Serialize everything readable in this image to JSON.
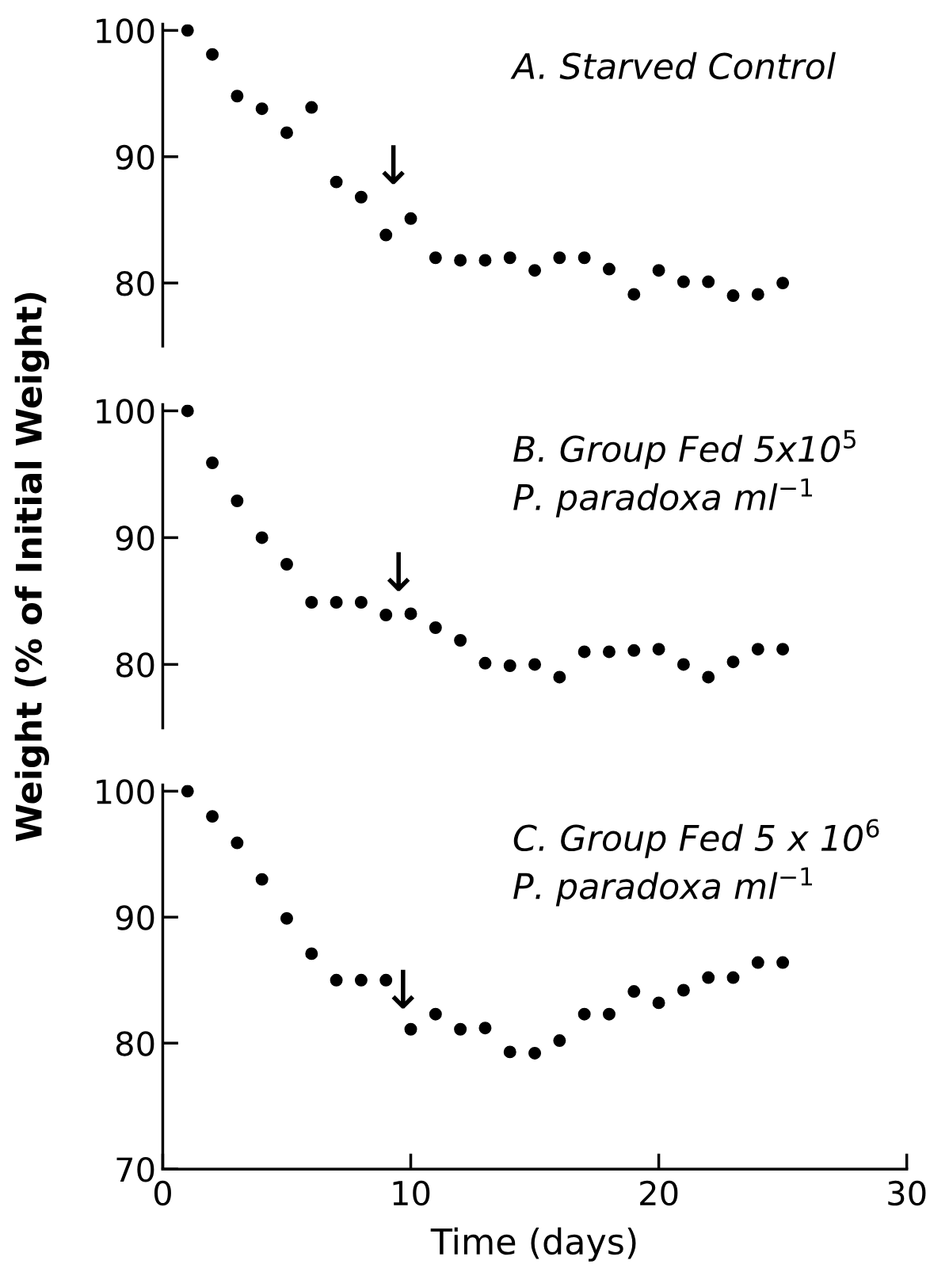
{
  "chart_data": [
    {
      "type": "scatter",
      "x": [
        1,
        2,
        3,
        4,
        5,
        6,
        7,
        8,
        9,
        10,
        11,
        12,
        13,
        14,
        15,
        16,
        17,
        18,
        19,
        20,
        21,
        22,
        23,
        24,
        25
      ],
      "series": [
        {
          "color": "#000000",
          "values": [
            100,
            98.1,
            94.8,
            93.8,
            91.9,
            93.9,
            88.0,
            86.8,
            83.8,
            85.1,
            82.0,
            81.8,
            81.8,
            82.0,
            81.0,
            82.0,
            82.0,
            81.1,
            79.1,
            81.0,
            80.1,
            80.1,
            79.0,
            79.1,
            80.0
          ]
        }
      ],
      "xlim": [
        0,
        30
      ],
      "ylim": [
        75,
        100.5
      ],
      "yticks": [
        80,
        90,
        100
      ],
      "tick_labels": "y",
      "marker": "circle",
      "grid": false,
      "legend": false,
      "annotations": [
        "A. Starved Control",
        "↓"
      ]
    },
    {
      "type": "scatter",
      "x": [
        1,
        2,
        3,
        4,
        5,
        6,
        7,
        8,
        9,
        10,
        11,
        12,
        13,
        14,
        15,
        16,
        17,
        18,
        19,
        20,
        21,
        22,
        23,
        24,
        25
      ],
      "series": [
        {
          "color": "#000000",
          "values": [
            100,
            95.9,
            92.9,
            90.0,
            87.9,
            84.9,
            84.9,
            84.9,
            83.9,
            84.0,
            82.9,
            81.9,
            80.1,
            79.9,
            80.0,
            79.0,
            81.0,
            81.0,
            81.1,
            81.2,
            80.0,
            79.0,
            80.2,
            81.2,
            81.2
          ]
        }
      ],
      "xlim": [
        0,
        30
      ],
      "ylim": [
        75,
        100.5
      ],
      "yticks": [
        80,
        90,
        100
      ],
      "tick_labels": "y",
      "marker": "circle",
      "grid": false,
      "legend": false,
      "ylabel": "Weight (% of Initial Weight)",
      "annotations": [
        "B. Group Fed 5x10$^{5}$",
        "P. paradoxa ml$^{−1}$",
        "↓"
      ]
    },
    {
      "type": "scatter",
      "x": [
        1,
        2,
        3,
        4,
        5,
        6,
        7,
        8,
        9,
        10,
        11,
        12,
        13,
        14,
        15,
        16,
        17,
        18,
        19,
        20,
        21,
        22,
        23,
        24,
        25
      ],
      "series": [
        {
          "color": "#000000",
          "values": [
            100,
            98.0,
            95.9,
            93.0,
            89.9,
            87.1,
            85.0,
            85.0,
            85.0,
            81.1,
            82.3,
            81.1,
            81.2,
            79.3,
            79.2,
            80.2,
            82.3,
            82.3,
            84.1,
            83.2,
            84.2,
            85.2,
            85.2,
            86.4,
            86.4
          ]
        }
      ],
      "xlim": [
        0,
        30
      ],
      "xticks": [
        0,
        10,
        20,
        30
      ],
      "ylim": [
        70,
        100.5
      ],
      "yticks": [
        70,
        80,
        90,
        100
      ],
      "marker": "circle",
      "grid": false,
      "legend": false,
      "xlabel": "Time (days)",
      "annotations": [
        "C. Group Fed 5 x 10$^{6}$",
        "P. paradoxa ml$^{−1}$",
        "↓"
      ]
    }
  ]
}
